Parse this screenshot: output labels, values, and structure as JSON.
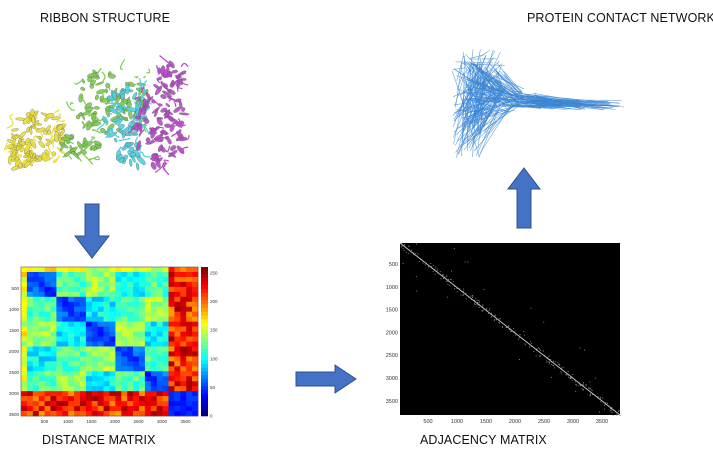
{
  "labels": {
    "ribbon": "RIBBON STRUCTURE",
    "network": "PROTEIN CONTACT NETWORK",
    "distance": "DISTANCE MATRIX",
    "adjacency": "ADJACENCY MATRIX"
  },
  "distance_matrix": {
    "y_ticks": [
      "500",
      "1000",
      "1500",
      "2000",
      "2500",
      "3000",
      "3500"
    ],
    "x_ticks": [
      "500",
      "1000",
      "1500",
      "2000",
      "2500",
      "3000",
      "3500"
    ],
    "colorbar_ticks": [
      "250",
      "200",
      "150",
      "100",
      "50",
      "0"
    ]
  },
  "adjacency_matrix": {
    "y_ticks": [
      "500",
      "1000",
      "1500",
      "2000",
      "2500",
      "3000",
      "3500"
    ],
    "x_ticks": [
      "500",
      "1000",
      "1500",
      "2000",
      "2500",
      "3000",
      "3500"
    ]
  },
  "colors": {
    "arrow": "#4472c4",
    "arrow_edge": "#2f528f",
    "network": "#3a86d4",
    "yellow_chain": "#e9dd3c",
    "green_chain": "#7bc950",
    "magenta_chain": "#b34bc4",
    "cyan_chain": "#4fd0e0"
  }
}
